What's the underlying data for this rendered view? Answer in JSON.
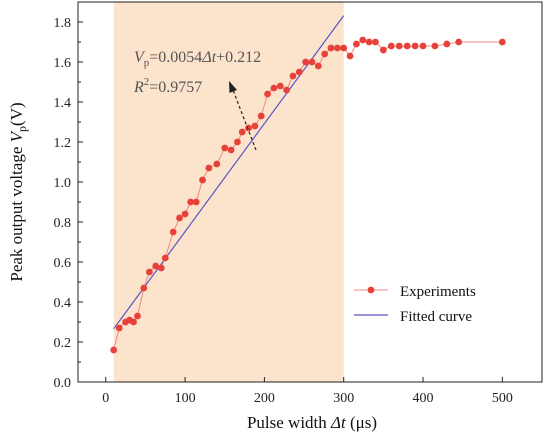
{
  "chart_data": {
    "type": "scatter",
    "xlim": [
      -35,
      550
    ],
    "ylim": [
      0,
      1.9
    ],
    "x_ticks": [
      0,
      100,
      200,
      300,
      400,
      500
    ],
    "y_ticks": [
      0.0,
      0.2,
      0.4,
      0.6,
      0.8,
      1.0,
      1.2,
      1.4,
      1.6,
      1.8
    ],
    "x_tick_labels": [
      "0",
      "100",
      "200",
      "300",
      "400",
      "500"
    ],
    "y_tick_labels": [
      "0.0",
      "0.2",
      "0.4",
      "0.6",
      "0.8",
      "1.0",
      "1.2",
      "1.4",
      "1.6",
      "1.8"
    ],
    "xlabel": {
      "pre": "Pulse width ",
      "var": "Δt",
      "post": " (μs)"
    },
    "ylabel": {
      "pre": "Peak output voltage ",
      "var": "V",
      "sub": "p",
      "post": "(V)"
    },
    "shaded_region": {
      "x_start": 10,
      "x_end": 300,
      "color": "#fbe3cc"
    },
    "colors": {
      "experiments": "#e8413a",
      "experiments_line": "#f08a80",
      "fit": "#5a55c8",
      "arrow": "#222222"
    },
    "annotation": {
      "eq_var": "V",
      "eq_sub": "p",
      "eq_rest_a": "=0.0054",
      "eq_rest_var": "Δt",
      "eq_rest_b": "+0.212",
      "r2_var": "R",
      "r2_sup": "2",
      "r2_rest": "=0.9757"
    },
    "series": [
      {
        "name": "Experiments",
        "points": [
          [
            10,
            0.16
          ],
          [
            17,
            0.27
          ],
          [
            25,
            0.3
          ],
          [
            30,
            0.31
          ],
          [
            35,
            0.3
          ],
          [
            40,
            0.33
          ],
          [
            48,
            0.47
          ],
          [
            55,
            0.55
          ],
          [
            63,
            0.58
          ],
          [
            70,
            0.57
          ],
          [
            75,
            0.62
          ],
          [
            85,
            0.75
          ],
          [
            93,
            0.82
          ],
          [
            100,
            0.84
          ],
          [
            107,
            0.9
          ],
          [
            114,
            0.9
          ],
          [
            122,
            1.01
          ],
          [
            130,
            1.07
          ],
          [
            140,
            1.09
          ],
          [
            150,
            1.17
          ],
          [
            158,
            1.16
          ],
          [
            166,
            1.2
          ],
          [
            172,
            1.25
          ],
          [
            180,
            1.27
          ],
          [
            188,
            1.28
          ],
          [
            196,
            1.33
          ],
          [
            204,
            1.44
          ],
          [
            212,
            1.47
          ],
          [
            220,
            1.48
          ],
          [
            228,
            1.46
          ],
          [
            236,
            1.53
          ],
          [
            244,
            1.55
          ],
          [
            252,
            1.6
          ],
          [
            260,
            1.6
          ],
          [
            268,
            1.58
          ],
          [
            276,
            1.64
          ],
          [
            284,
            1.67
          ],
          [
            292,
            1.67
          ],
          [
            300,
            1.67
          ],
          [
            308,
            1.63
          ],
          [
            316,
            1.69
          ],
          [
            324,
            1.71
          ],
          [
            332,
            1.7
          ],
          [
            340,
            1.7
          ],
          [
            350,
            1.66
          ],
          [
            360,
            1.68
          ],
          [
            370,
            1.68
          ],
          [
            380,
            1.68
          ],
          [
            390,
            1.68
          ],
          [
            400,
            1.68
          ],
          [
            415,
            1.68
          ],
          [
            430,
            1.69
          ],
          [
            445,
            1.7
          ],
          [
            500,
            1.7
          ]
        ]
      },
      {
        "name": "Fitted curve",
        "slope": 0.0054,
        "intercept": 0.212,
        "x_range": [
          10,
          300
        ]
      }
    ],
    "legend_position": "bottom-right",
    "grid": false
  }
}
